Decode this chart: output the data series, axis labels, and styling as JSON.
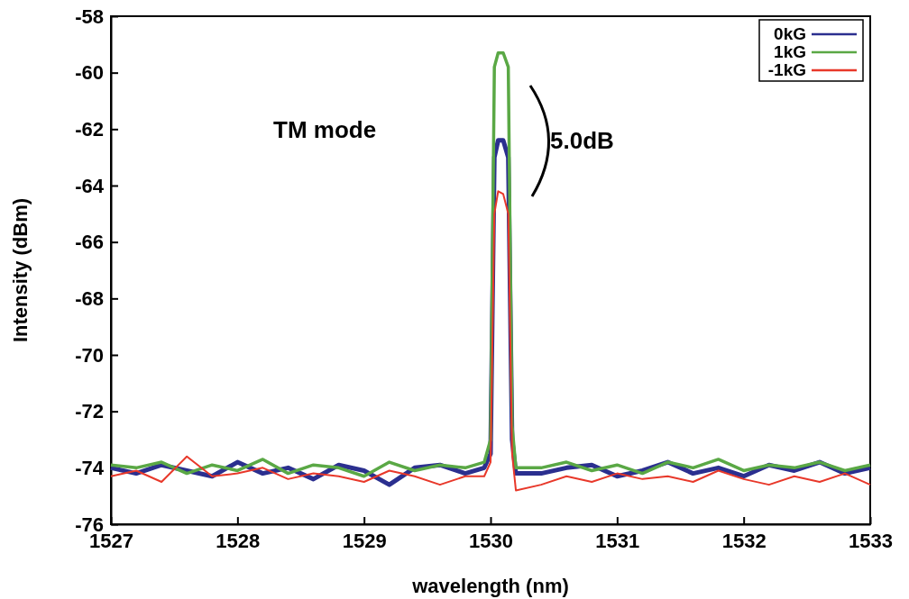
{
  "chart_data": {
    "type": "line",
    "xlabel": "wavelength (nm)",
    "ylabel": "Intensity (dBm)",
    "annotations": [
      "TM mode",
      "5.0dB"
    ],
    "x": [
      1527,
      1527.2,
      1527.4,
      1527.6,
      1527.8,
      1528,
      1528.2,
      1528.4,
      1528.6,
      1528.8,
      1529,
      1529.2,
      1529.4,
      1529.6,
      1529.8,
      1529.95,
      1530,
      1530.03,
      1530.06,
      1530.1,
      1530.14,
      1530.17,
      1530.2,
      1530.4,
      1530.6,
      1530.8,
      1531,
      1531.2,
      1531.4,
      1531.6,
      1531.8,
      1532,
      1532.2,
      1532.4,
      1532.6,
      1532.8,
      1533
    ],
    "series": [
      {
        "name": "0kG",
        "color": "#2b2f8f",
        "values": [
          -74.0,
          -74.2,
          -73.9,
          -74.1,
          -74.3,
          -73.8,
          -74.2,
          -74.0,
          -74.4,
          -73.9,
          -74.1,
          -74.6,
          -74.0,
          -73.9,
          -74.2,
          -74.0,
          -73.5,
          -63.0,
          -62.4,
          -62.4,
          -63.0,
          -73.0,
          -74.2,
          -74.2,
          -74.0,
          -73.9,
          -74.3,
          -74.1,
          -73.8,
          -74.2,
          -74.0,
          -74.3,
          -73.9,
          -74.1,
          -73.8,
          -74.2,
          -74.0
        ]
      },
      {
        "name": "1kG",
        "color": "#5aa845",
        "values": [
          -73.9,
          -74.0,
          -73.8,
          -74.2,
          -73.9,
          -74.1,
          -73.7,
          -74.2,
          -73.9,
          -74.0,
          -74.3,
          -73.8,
          -74.1,
          -73.9,
          -74.0,
          -73.8,
          -73.0,
          -59.8,
          -59.3,
          -59.3,
          -59.8,
          -72.5,
          -74.0,
          -74.0,
          -73.8,
          -74.1,
          -73.9,
          -74.2,
          -73.8,
          -74.0,
          -73.7,
          -74.1,
          -73.9,
          -74.0,
          -73.8,
          -74.1,
          -73.9
        ]
      },
      {
        "name": "-1kG",
        "color": "#e8382a",
        "values": [
          -74.3,
          -74.1,
          -74.5,
          -73.6,
          -74.3,
          -74.2,
          -74.0,
          -74.4,
          -74.2,
          -74.3,
          -74.5,
          -74.1,
          -74.3,
          -74.6,
          -74.3,
          -74.3,
          -73.8,
          -65.0,
          -64.2,
          -64.3,
          -65.0,
          -73.5,
          -74.8,
          -74.6,
          -74.3,
          -74.5,
          -74.2,
          -74.4,
          -74.3,
          -74.5,
          -74.1,
          -74.4,
          -74.6,
          -74.3,
          -74.5,
          -74.2,
          -74.6
        ]
      }
    ],
    "xlim": [
      1527,
      1533
    ],
    "xticks": [
      1527,
      1528,
      1529,
      1530,
      1531,
      1532,
      1533
    ],
    "ylim": [
      -76,
      -58
    ],
    "yticks": [
      -76,
      -74,
      -72,
      -70,
      -68,
      -66,
      -64,
      -62,
      -60,
      -58
    ],
    "grid": false,
    "legend": "top right",
    "marker": "none",
    "line_style": "solid"
  }
}
